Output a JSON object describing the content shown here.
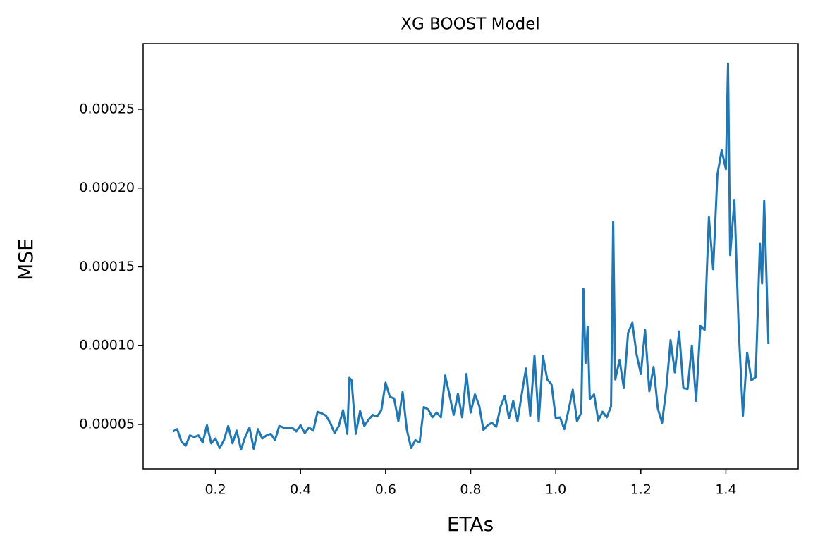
{
  "chart_data": {
    "type": "line",
    "title": "XG BOOST Model",
    "x_label": "ETAs",
    "y_label": "MSE",
    "x": [
      0.1,
      0.11,
      0.12,
      0.13,
      0.14,
      0.15,
      0.16,
      0.17,
      0.18,
      0.19,
      0.2,
      0.21,
      0.22,
      0.23,
      0.24,
      0.25,
      0.26,
      0.27,
      0.28,
      0.29,
      0.3,
      0.31,
      0.32,
      0.33,
      0.34,
      0.35,
      0.36,
      0.37,
      0.38,
      0.39,
      0.4,
      0.41,
      0.42,
      0.43,
      0.44,
      0.45,
      0.46,
      0.47,
      0.48,
      0.49,
      0.5,
      0.51,
      0.515,
      0.52,
      0.53,
      0.54,
      0.55,
      0.56,
      0.57,
      0.58,
      0.59,
      0.6,
      0.61,
      0.62,
      0.63,
      0.64,
      0.65,
      0.66,
      0.67,
      0.68,
      0.69,
      0.7,
      0.71,
      0.72,
      0.73,
      0.74,
      0.75,
      0.76,
      0.77,
      0.78,
      0.79,
      0.8,
      0.81,
      0.82,
      0.83,
      0.84,
      0.85,
      0.86,
      0.87,
      0.88,
      0.89,
      0.9,
      0.91,
      0.92,
      0.93,
      0.94,
      0.95,
      0.96,
      0.97,
      0.98,
      0.99,
      1.0,
      1.01,
      1.02,
      1.03,
      1.04,
      1.05,
      1.06,
      1.065,
      1.07,
      1.075,
      1.08,
      1.09,
      1.1,
      1.11,
      1.12,
      1.13,
      1.135,
      1.14,
      1.15,
      1.16,
      1.17,
      1.18,
      1.19,
      1.2,
      1.21,
      1.22,
      1.23,
      1.24,
      1.25,
      1.26,
      1.27,
      1.28,
      1.29,
      1.3,
      1.31,
      1.32,
      1.33,
      1.34,
      1.35,
      1.36,
      1.37,
      1.38,
      1.39,
      1.4,
      1.405,
      1.41,
      1.42,
      1.43,
      1.44,
      1.45,
      1.46,
      1.47,
      1.48,
      1.485,
      1.49,
      1.5
    ],
    "series": [
      {
        "color": "#1f77b4",
        "values": [
          4.55e-05,
          4.7e-05,
          3.9e-05,
          3.65e-05,
          4.3e-05,
          4.2e-05,
          4.3e-05,
          3.85e-05,
          4.95e-05,
          3.8e-05,
          4.1e-05,
          3.5e-05,
          4e-05,
          4.9e-05,
          3.8e-05,
          4.6e-05,
          3.4e-05,
          4.2e-05,
          4.8e-05,
          3.45e-05,
          4.7e-05,
          4.1e-05,
          4.3e-05,
          4.4e-05,
          4e-05,
          4.9e-05,
          4.8e-05,
          4.75e-05,
          4.8e-05,
          4.55e-05,
          4.95e-05,
          4.45e-05,
          4.8e-05,
          4.6e-05,
          5.8e-05,
          5.7e-05,
          5.55e-05,
          5.1e-05,
          4.45e-05,
          4.9e-05,
          5.9e-05,
          4.4e-05,
          7.95e-05,
          7.8e-05,
          4.4e-05,
          5.85e-05,
          4.9e-05,
          5.3e-05,
          5.6e-05,
          5.5e-05,
          5.9e-05,
          7.65e-05,
          6.75e-05,
          6.65e-05,
          5.2e-05,
          7.05e-05,
          4.65e-05,
          3.5e-05,
          4e-05,
          3.85e-05,
          6.1e-05,
          5.95e-05,
          5.45e-05,
          5.75e-05,
          5.45e-05,
          8.1e-05,
          6.9e-05,
          5.6e-05,
          6.95e-05,
          5.45e-05,
          8.2e-05,
          5.75e-05,
          6.9e-05,
          6.2e-05,
          4.65e-05,
          4.95e-05,
          5.1e-05,
          4.85e-05,
          6.1e-05,
          6.8e-05,
          5.4e-05,
          6.5e-05,
          5.2e-05,
          6.9e-05,
          8.55e-05,
          5.55e-05,
          9.35e-05,
          5.2e-05,
          9.35e-05,
          7.85e-05,
          7.55e-05,
          5.4e-05,
          5.45e-05,
          4.7e-05,
          5.9e-05,
          7.2e-05,
          5.2e-05,
          5.75e-05,
          0.000136,
          8.9e-05,
          0.000112,
          6.6e-05,
          6.9e-05,
          5.25e-05,
          5.8e-05,
          5.45e-05,
          6.15e-05,
          0.0001785,
          7.85e-05,
          9.1e-05,
          7.3e-05,
          0.000108,
          0.0001145,
          9.45e-05,
          8.2e-05,
          0.00011,
          7.1e-05,
          8.65e-05,
          6e-05,
          5.1e-05,
          7.3e-05,
          0.0001035,
          8.3e-05,
          0.000109,
          7.3e-05,
          7.25e-05,
          0.0001,
          6.5e-05,
          0.0001125,
          0.00011,
          0.0001815,
          0.0001485,
          0.0002085,
          0.000224,
          0.000212,
          0.000279,
          0.0001575,
          0.0001925,
          0.0001115,
          5.55e-05,
          9.55e-05,
          7.8e-05,
          8e-05,
          0.000165,
          0.0001395,
          0.000192,
          0.000101
        ]
      }
    ],
    "xlim": [
      0.03,
      1.57
    ],
    "ylim": [
      2.18e-05,
      0.0002916
    ],
    "xticks": [
      0.2,
      0.4,
      0.6,
      0.8,
      {
        "value": 1,
        "label": "1.0"
      },
      1.2,
      1.4
    ],
    "yticks": [
      {
        "value": 5e-05,
        "label": "0.00005"
      },
      {
        "value": 0.0001,
        "label": "0.00010"
      },
      {
        "value": 0.00015,
        "label": "0.00015"
      },
      {
        "value": 0.0002,
        "label": "0.00020"
      },
      {
        "value": 0.00025,
        "label": "0.00025"
      }
    ]
  }
}
